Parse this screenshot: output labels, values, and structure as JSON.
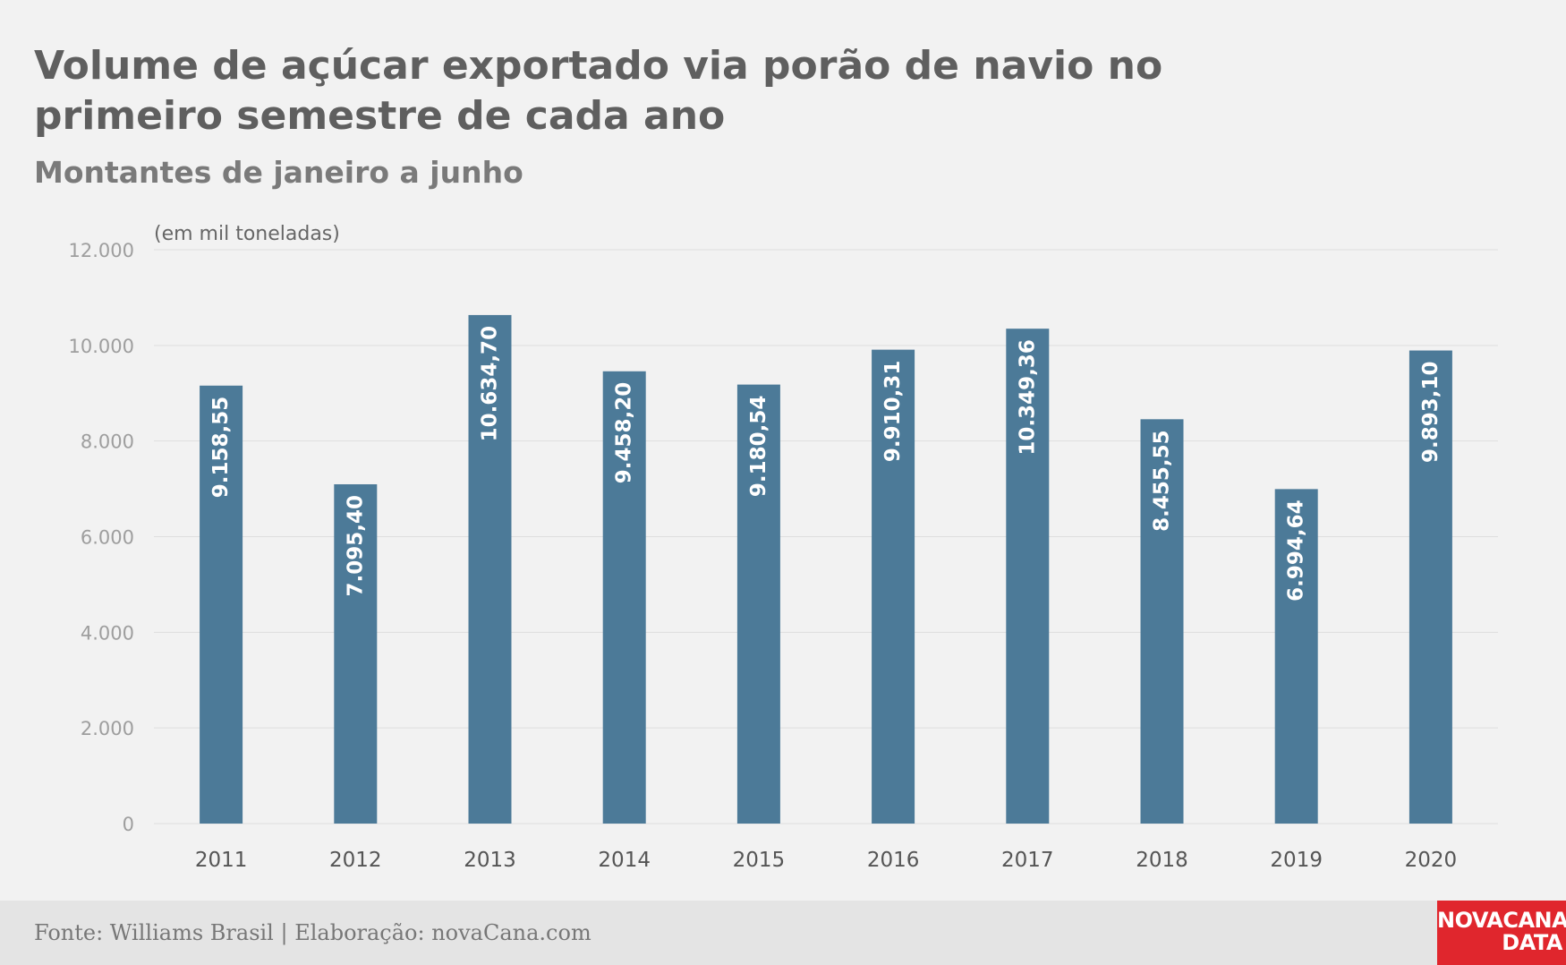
{
  "header": {
    "title": "Volume de açúcar exportado via porão de navio no primeiro semestre de cada ano",
    "subtitle": "Montantes de janeiro a junho"
  },
  "footer": {
    "source": "Fonte: Williams Brasil | Elaboração: novaCana.com",
    "logo_line1": "NOVACANA",
    "logo_line2": "DATA"
  },
  "colors": {
    "bar": "#4c7a98",
    "bar_label": "#ffffff",
    "grid": "#dedede",
    "tick": "#9e9e9e",
    "category": "#555555",
    "unit_note": "#666666",
    "logo_bg": "#e0262d"
  },
  "chart_data": {
    "type": "bar",
    "unit_note": "(em mil toneladas)",
    "categories": [
      "2011",
      "2012",
      "2013",
      "2014",
      "2015",
      "2016",
      "2017",
      "2018",
      "2019",
      "2020"
    ],
    "values": [
      9158.55,
      7095.4,
      10634.7,
      9458.2,
      9180.54,
      9910.31,
      10349.36,
      8455.55,
      6994.64,
      9893.1
    ],
    "value_labels": [
      "9.158,55",
      "7.095,40",
      "10.634,70",
      "9.458,20",
      "9.180,54",
      "9.910,31",
      "10.349,36",
      "8.455,55",
      "6.994,64",
      "9.893,10"
    ],
    "ylim": [
      0,
      12000
    ],
    "yticks": [
      0,
      2000,
      4000,
      6000,
      8000,
      10000,
      12000
    ],
    "ytick_labels": [
      "0",
      "2.000",
      "4.000",
      "6.000",
      "8.000",
      "10.000",
      "12.000"
    ],
    "grid": true,
    "legend": "none",
    "data_labels": "inside-top-vertical"
  }
}
